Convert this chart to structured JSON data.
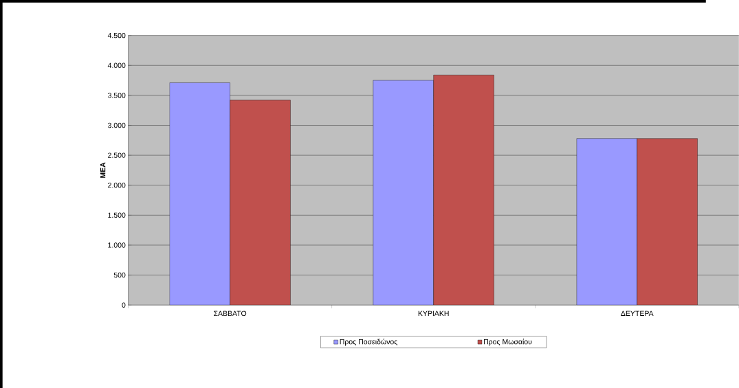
{
  "chart_data": {
    "type": "bar",
    "ylabel": "ΜΕΑ",
    "categories": [
      "ΣΑΒΒΑΤΟ",
      "ΚΥΡΙΑΚΗ",
      "ΔΕΥΤΕΡΑ"
    ],
    "series": [
      {
        "name": "Προς Ποσειδώνος",
        "color": "#9999ff",
        "values": [
          3710,
          3750,
          2780
        ]
      },
      {
        "name": "Προς Μωσαίου",
        "color": "#c0504d",
        "values": [
          3420,
          3840,
          2780
        ]
      }
    ],
    "ylim": [
      0,
      4500
    ],
    "yticks": [
      0,
      {
        "value": 500,
        "label": "500"
      },
      {
        "value": 1000,
        "label": "1.000"
      },
      {
        "value": 1500,
        "label": "1.500"
      },
      {
        "value": 2000,
        "label": "2.000"
      },
      {
        "value": 2500,
        "label": "2.500"
      },
      {
        "value": 3000,
        "label": "3.000"
      },
      {
        "value": 3500,
        "label": "3.500"
      },
      {
        "value": 4000,
        "label": "4.000"
      },
      {
        "value": 4500,
        "label": "4.500"
      }
    ],
    "grid": "y",
    "legend": "bottom"
  }
}
